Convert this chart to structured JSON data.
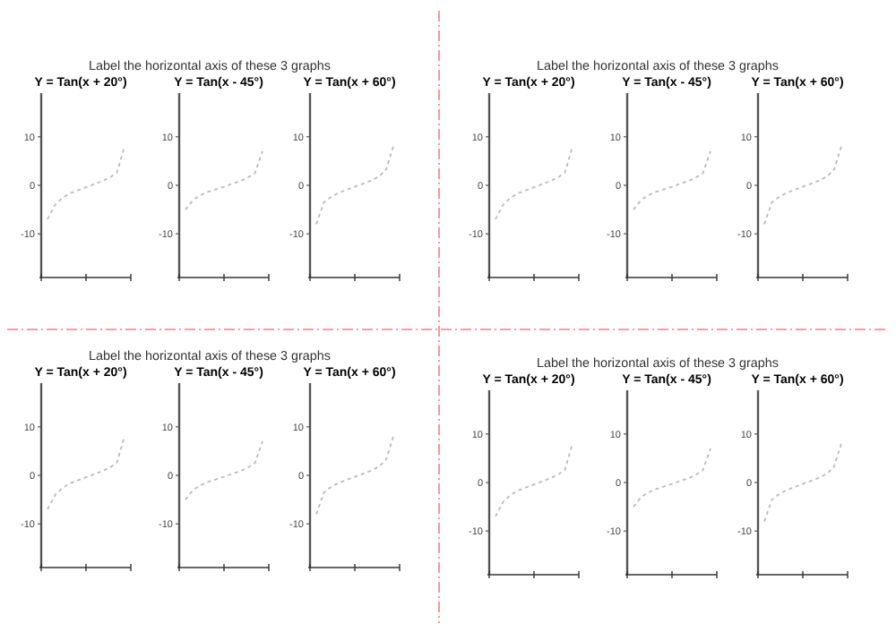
{
  "chart_data": [
    {
      "type": "line",
      "annotations": [
        "Label the horizontal axis of these 3 graphs"
      ],
      "title": "Y = Tan(x + 20°)",
      "categories": [
        null,
        null,
        null,
        null,
        null,
        null,
        null,
        null,
        null,
        null,
        null
      ],
      "series": [
        {
          "color": "#bbbbbb",
          "values": [
            -7,
            -4,
            -2.5,
            -1.6,
            -1,
            -0.4,
            0.2,
            0.8,
            1.5,
            2.6,
            8
          ]
        }
      ],
      "line_style": "dashed",
      "ylim": [
        -19,
        19
      ],
      "yticks": [
        -10,
        0,
        10
      ],
      "tick_labels": "y"
    },
    {
      "type": "line",
      "title": "Y = Tan(x - 45°)",
      "categories": [
        null,
        null,
        null,
        null,
        null,
        null,
        null,
        null,
        null,
        null,
        null
      ],
      "series": [
        {
          "color": "#bbbbbb",
          "values": [
            -5,
            -3,
            -2,
            -1.3,
            -0.8,
            -0.3,
            0.3,
            0.8,
            1.5,
            2.5,
            7
          ]
        }
      ],
      "line_style": "dashed",
      "ylim": [
        -19,
        19
      ],
      "yticks": [
        -10,
        0,
        10
      ],
      "tick_labels": "y"
    },
    {
      "type": "line",
      "title": "Y = Tan(x + 60°)",
      "categories": [
        null,
        null,
        null,
        null,
        null,
        null,
        null,
        null,
        null,
        null,
        null
      ],
      "series": [
        {
          "color": "#bbbbbb",
          "values": [
            -8,
            -3.5,
            -2.3,
            -1.5,
            -0.9,
            -0.3,
            0.3,
            0.9,
            1.7,
            3,
            8
          ]
        }
      ],
      "line_style": "dashed",
      "ylim": [
        -19,
        19
      ],
      "yticks": [
        -10,
        0,
        10
      ],
      "tick_labels": "y"
    },
    {
      "type": "line",
      "annotations": [
        "Label the horizontal axis of these 3 graphs"
      ],
      "title": "Y = Tan(x + 20°)",
      "categories": [
        null,
        null,
        null,
        null,
        null,
        null,
        null,
        null,
        null,
        null,
        null
      ],
      "series": [
        {
          "color": "#bbbbbb",
          "values": [
            -7,
            -4,
            -2.5,
            -1.6,
            -1,
            -0.4,
            0.2,
            0.8,
            1.5,
            2.6,
            8
          ]
        }
      ],
      "line_style": "dashed",
      "ylim": [
        -19,
        19
      ],
      "yticks": [
        -10,
        0,
        10
      ],
      "tick_labels": "y"
    },
    {
      "type": "line",
      "title": "Y = Tan(x - 45°)",
      "categories": [
        null,
        null,
        null,
        null,
        null,
        null,
        null,
        null,
        null,
        null,
        null
      ],
      "series": [
        {
          "color": "#bbbbbb",
          "values": [
            -5,
            -3,
            -2,
            -1.3,
            -0.8,
            -0.3,
            0.3,
            0.8,
            1.5,
            2.5,
            7
          ]
        }
      ],
      "line_style": "dashed",
      "ylim": [
        -19,
        19
      ],
      "yticks": [
        -10,
        0,
        10
      ],
      "tick_labels": "y"
    },
    {
      "type": "line",
      "title": "Y = Tan(x + 60°)",
      "categories": [
        null,
        null,
        null,
        null,
        null,
        null,
        null,
        null,
        null,
        null,
        null
      ],
      "series": [
        {
          "color": "#bbbbbb",
          "values": [
            -8,
            -3.5,
            -2.3,
            -1.5,
            -0.9,
            -0.3,
            0.3,
            0.9,
            1.7,
            3,
            8
          ]
        }
      ],
      "line_style": "dashed",
      "ylim": [
        -19,
        19
      ],
      "yticks": [
        -10,
        0,
        10
      ],
      "tick_labels": "y"
    },
    {
      "type": "line",
      "annotations": [
        "Label the horizontal axis of these 3 graphs"
      ],
      "title": "Y = Tan(x + 20°)",
      "categories": [
        null,
        null,
        null,
        null,
        null,
        null,
        null,
        null,
        null,
        null,
        null
      ],
      "series": [
        {
          "color": "#bbbbbb",
          "values": [
            -7,
            -4,
            -2.5,
            -1.6,
            -1,
            -0.4,
            0.2,
            0.8,
            1.5,
            2.6,
            8
          ]
        }
      ],
      "line_style": "dashed",
      "ylim": [
        -19,
        19
      ],
      "yticks": [
        -10,
        0,
        10
      ],
      "tick_labels": "y"
    },
    {
      "type": "line",
      "title": "Y = Tan(x - 45°)",
      "categories": [
        null,
        null,
        null,
        null,
        null,
        null,
        null,
        null,
        null,
        null,
        null
      ],
      "series": [
        {
          "color": "#bbbbbb",
          "values": [
            -5,
            -3,
            -2,
            -1.3,
            -0.8,
            -0.3,
            0.3,
            0.8,
            1.5,
            2.5,
            7
          ]
        }
      ],
      "line_style": "dashed",
      "ylim": [
        -19,
        19
      ],
      "yticks": [
        -10,
        0,
        10
      ],
      "tick_labels": "y"
    },
    {
      "type": "line",
      "title": "Y = Tan(x + 60°)",
      "categories": [
        null,
        null,
        null,
        null,
        null,
        null,
        null,
        null,
        null,
        null,
        null
      ],
      "series": [
        {
          "color": "#bbbbbb",
          "values": [
            -8,
            -3.5,
            -2.3,
            -1.5,
            -0.9,
            -0.3,
            0.3,
            0.9,
            1.7,
            3,
            8
          ]
        }
      ],
      "line_style": "dashed",
      "ylim": [
        -19,
        19
      ],
      "yticks": [
        -10,
        0,
        10
      ],
      "tick_labels": "y"
    },
    {
      "type": "line",
      "annotations": [
        "Label the horizontal axis of these 3 graphs"
      ],
      "title": "Y = Tan(x + 20°)",
      "categories": [
        null,
        null,
        null,
        null,
        null,
        null,
        null,
        null,
        null,
        null,
        null
      ],
      "series": [
        {
          "color": "#bbbbbb",
          "values": [
            -7,
            -4,
            -2.5,
            -1.6,
            -1,
            -0.4,
            0.2,
            0.8,
            1.5,
            2.6,
            8
          ]
        }
      ],
      "line_style": "dashed",
      "ylim": [
        -19,
        19
      ],
      "yticks": [
        -10,
        0,
        10
      ],
      "tick_labels": "y"
    },
    {
      "type": "line",
      "title": "Y = Tan(x - 45°)",
      "categories": [
        null,
        null,
        null,
        null,
        null,
        null,
        null,
        null,
        null,
        null,
        null
      ],
      "series": [
        {
          "color": "#bbbbbb",
          "values": [
            -5,
            -3,
            -2,
            -1.3,
            -0.8,
            -0.3,
            0.3,
            0.8,
            1.5,
            2.5,
            7
          ]
        }
      ],
      "line_style": "dashed",
      "ylim": [
        -19,
        19
      ],
      "yticks": [
        -10,
        0,
        10
      ],
      "tick_labels": "y"
    },
    {
      "type": "line",
      "title": "Y = Tan(x + 60°)",
      "categories": [
        null,
        null,
        null,
        null,
        null,
        null,
        null,
        null,
        null,
        null,
        null
      ],
      "series": [
        {
          "color": "#bbbbbb",
          "values": [
            -8,
            -3.5,
            -2.3,
            -1.5,
            -0.9,
            -0.3,
            0.3,
            0.9,
            1.7,
            3,
            8
          ]
        }
      ],
      "line_style": "dashed",
      "ylim": [
        -19,
        19
      ],
      "yticks": [
        -10,
        0,
        10
      ],
      "tick_labels": "y"
    }
  ]
}
